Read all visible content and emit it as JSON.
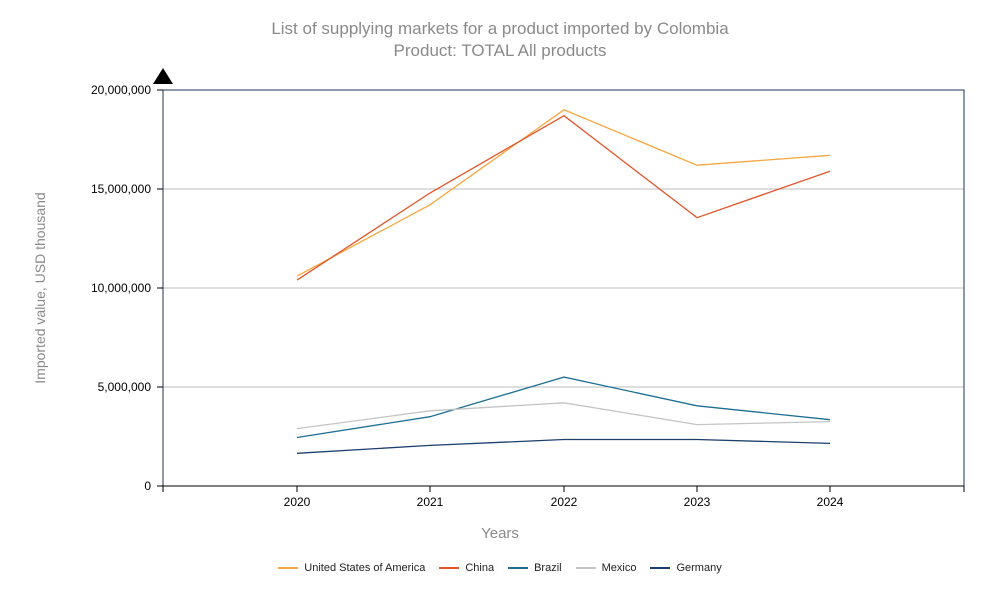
{
  "chart_data": {
    "type": "line",
    "title": "List of supplying markets for a product imported by Colombia",
    "subtitle": "Product: TOTAL All products",
    "xlabel": "Years",
    "ylabel": "Imported value, USD thousand",
    "categories": [
      "2020",
      "2021",
      "2022",
      "2023",
      "2024"
    ],
    "ylim": [
      0,
      20000000
    ],
    "yticks": [
      "0",
      "5,000,000",
      "10,000,000",
      "15,000,000",
      "20,000,000"
    ],
    "ytick_values": [
      0,
      5000000,
      10000000,
      15000000,
      20000000
    ],
    "grid": true,
    "legend_position": "bottom",
    "series": [
      {
        "name": "United States of America",
        "color": "#f5a742",
        "values": [
          10600000,
          14200000,
          19000000,
          16200000,
          16700000
        ]
      },
      {
        "name": "China",
        "color": "#e0562a",
        "values": [
          10400000,
          14800000,
          18700000,
          13550000,
          15900000
        ]
      },
      {
        "name": "Brazil",
        "color": "#1f6e94",
        "values": [
          2450000,
          3500000,
          5500000,
          4050000,
          3350000
        ]
      },
      {
        "name": "Mexico",
        "color": "#c4c4c4",
        "values": [
          2900000,
          3800000,
          4200000,
          3100000,
          3250000
        ]
      },
      {
        "name": "Germany",
        "color": "#1d3f6e",
        "values": [
          1650000,
          2050000,
          2350000,
          2350000,
          2150000
        ]
      }
    ]
  }
}
